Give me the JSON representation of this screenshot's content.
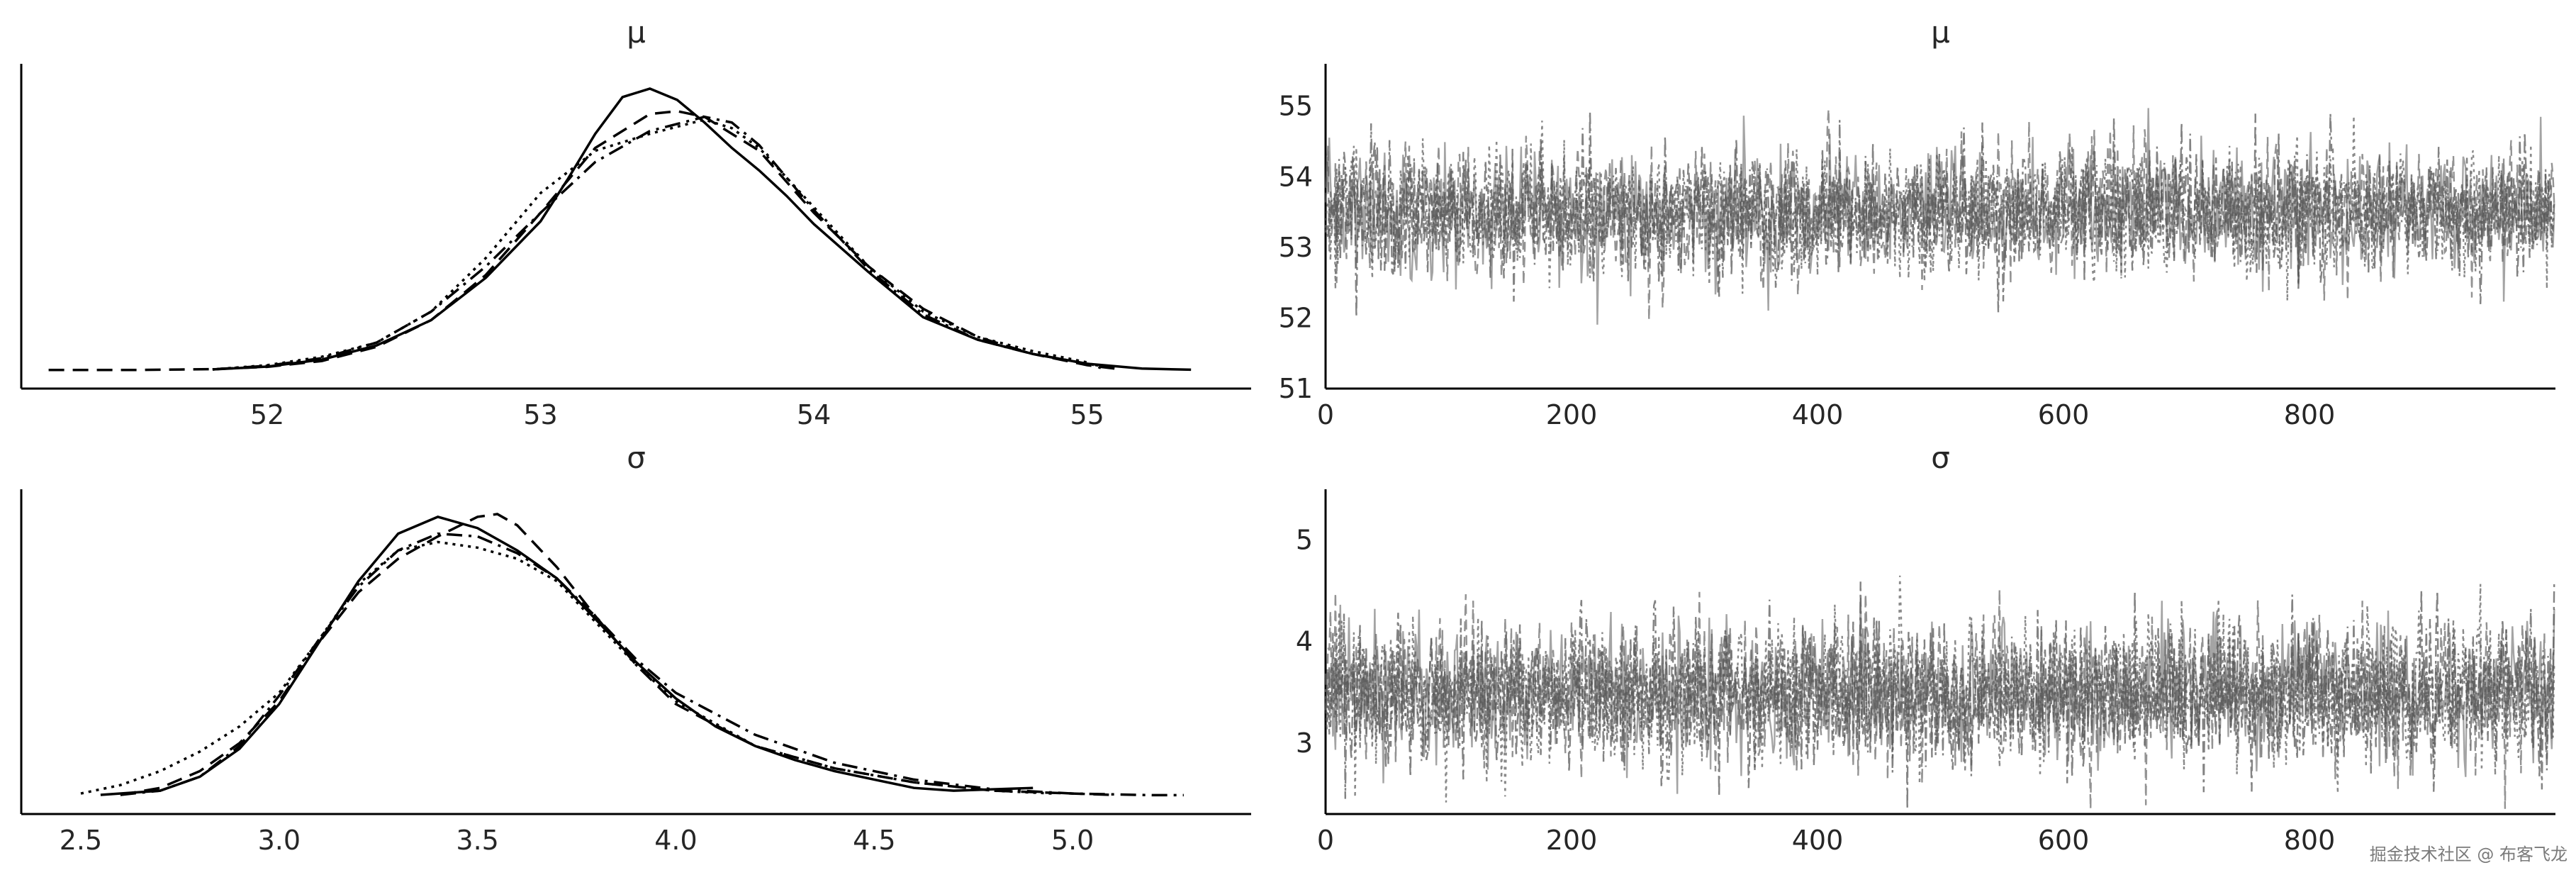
{
  "watermark": "掘金技术社区 @ 布客飞龙",
  "colors": {
    "kde_line": "#000000",
    "trace_line": "#595959",
    "text": "#262626"
  },
  "chart_data": [
    {
      "id": "mu-posterior",
      "type": "line",
      "title": "μ",
      "xlabel": "",
      "ylabel": "",
      "xlim": [
        51.1,
        55.6
      ],
      "xticks": [
        "52",
        "53",
        "54",
        "55"
      ],
      "show_y_axis_ticks": false,
      "grid": false,
      "series": [
        {
          "style": "solid",
          "x": [
            51.8,
            52.0,
            52.2,
            52.4,
            52.6,
            52.8,
            53.0,
            53.1,
            53.2,
            53.3,
            53.4,
            53.5,
            53.6,
            53.7,
            53.8,
            53.9,
            54.0,
            54.2,
            54.4,
            54.6,
            54.8,
            55.0,
            55.2,
            55.38
          ],
          "y": [
            0.005,
            0.015,
            0.04,
            0.09,
            0.18,
            0.33,
            0.53,
            0.68,
            0.84,
            0.97,
            1.0,
            0.96,
            0.88,
            0.79,
            0.71,
            0.62,
            0.52,
            0.35,
            0.19,
            0.11,
            0.06,
            0.025,
            0.008,
            0.004
          ]
        },
        {
          "style": "dashed",
          "x": [
            51.2,
            51.5,
            51.8,
            52.0,
            52.2,
            52.4,
            52.6,
            52.8,
            53.0,
            53.2,
            53.4,
            53.5,
            53.6,
            53.8,
            54.0,
            54.2,
            54.4,
            54.6,
            54.8,
            55.0,
            55.1
          ],
          "y": [
            0.003,
            0.003,
            0.006,
            0.014,
            0.035,
            0.085,
            0.18,
            0.34,
            0.56,
            0.79,
            0.91,
            0.92,
            0.9,
            0.78,
            0.56,
            0.37,
            0.22,
            0.12,
            0.06,
            0.02,
            0.008
          ]
        },
        {
          "style": "dotted",
          "x": [
            51.8,
            52.0,
            52.2,
            52.4,
            52.6,
            52.8,
            53.0,
            53.2,
            53.4,
            53.6,
            53.7,
            53.8,
            54.0,
            54.2,
            54.4,
            54.6,
            54.8,
            55.0,
            55.05
          ],
          "y": [
            0.005,
            0.02,
            0.05,
            0.1,
            0.21,
            0.4,
            0.63,
            0.78,
            0.84,
            0.89,
            0.86,
            0.79,
            0.58,
            0.37,
            0.21,
            0.12,
            0.07,
            0.03,
            0.01
          ]
        },
        {
          "style": "dashdot",
          "x": [
            51.8,
            52.0,
            52.2,
            52.4,
            52.6,
            52.8,
            53.0,
            53.2,
            53.4,
            53.6,
            53.7,
            53.8,
            54.0,
            54.2,
            54.4,
            54.6,
            54.8,
            55.0,
            55.1
          ],
          "y": [
            0.005,
            0.018,
            0.045,
            0.1,
            0.21,
            0.37,
            0.56,
            0.74,
            0.85,
            0.9,
            0.88,
            0.8,
            0.57,
            0.36,
            0.2,
            0.11,
            0.06,
            0.025,
            0.01
          ]
        }
      ]
    },
    {
      "id": "mu-trace",
      "type": "line",
      "title": "μ",
      "xlabel": "",
      "ylabel": "",
      "xlim": [
        0,
        1000
      ],
      "ylim": [
        51.0,
        55.6
      ],
      "xticks": [
        "0",
        "200",
        "400",
        "600",
        "800"
      ],
      "yticks": [
        "51",
        "52",
        "53",
        "54",
        "55"
      ],
      "draws": 1000,
      "chains": 4,
      "center": 53.5,
      "spread": 0.45,
      "grid": false
    },
    {
      "id": "sigma-posterior",
      "type": "line",
      "title": "σ",
      "xlabel": "",
      "ylabel": "",
      "xlim": [
        2.35,
        5.45
      ],
      "xticks": [
        "2.5",
        "3.0",
        "3.5",
        "4.0",
        "4.5",
        "5.0"
      ],
      "show_y_axis_ticks": false,
      "grid": false,
      "series": [
        {
          "style": "solid",
          "x": [
            2.55,
            2.7,
            2.8,
            2.9,
            3.0,
            3.1,
            3.2,
            3.3,
            3.4,
            3.5,
            3.6,
            3.7,
            3.8,
            3.9,
            4.0,
            4.1,
            4.2,
            4.3,
            4.4,
            4.5,
            4.6,
            4.7,
            4.8,
            4.9
          ],
          "y": [
            0.005,
            0.02,
            0.07,
            0.17,
            0.33,
            0.55,
            0.77,
            0.94,
            1.0,
            0.96,
            0.88,
            0.78,
            0.63,
            0.48,
            0.35,
            0.25,
            0.18,
            0.13,
            0.09,
            0.06,
            0.03,
            0.02,
            0.025,
            0.03
          ]
        },
        {
          "style": "dashed",
          "x": [
            2.6,
            2.7,
            2.8,
            2.9,
            3.0,
            3.1,
            3.2,
            3.3,
            3.4,
            3.5,
            3.55,
            3.6,
            3.7,
            3.8,
            3.9,
            4.0,
            4.2,
            4.4,
            4.6,
            4.8,
            5.0,
            5.1
          ],
          "y": [
            0.005,
            0.03,
            0.09,
            0.19,
            0.34,
            0.55,
            0.73,
            0.85,
            0.93,
            1.0,
            1.01,
            0.97,
            0.82,
            0.64,
            0.47,
            0.33,
            0.18,
            0.1,
            0.05,
            0.02,
            0.01,
            0.005
          ]
        },
        {
          "style": "dotted",
          "x": [
            2.5,
            2.6,
            2.7,
            2.8,
            2.9,
            3.0,
            3.1,
            3.2,
            3.3,
            3.4,
            3.5,
            3.6,
            3.7,
            3.8,
            3.9,
            4.0,
            4.2,
            4.4,
            4.6,
            4.8,
            4.95
          ],
          "y": [
            0.01,
            0.04,
            0.09,
            0.16,
            0.25,
            0.37,
            0.56,
            0.76,
            0.88,
            0.91,
            0.89,
            0.85,
            0.77,
            0.62,
            0.47,
            0.34,
            0.18,
            0.1,
            0.05,
            0.02,
            0.01
          ]
        },
        {
          "style": "dashdot",
          "x": [
            2.6,
            2.7,
            2.8,
            2.9,
            3.0,
            3.1,
            3.2,
            3.3,
            3.4,
            3.5,
            3.6,
            3.7,
            3.8,
            3.9,
            4.0,
            4.2,
            4.4,
            4.6,
            4.8,
            5.0,
            5.2,
            5.28
          ],
          "y": [
            0.005,
            0.02,
            0.07,
            0.18,
            0.36,
            0.56,
            0.75,
            0.88,
            0.94,
            0.93,
            0.87,
            0.78,
            0.64,
            0.49,
            0.37,
            0.22,
            0.12,
            0.06,
            0.025,
            0.01,
            0.004,
            0.004
          ]
        }
      ]
    },
    {
      "id": "sigma-trace",
      "type": "line",
      "title": "σ",
      "xlabel": "",
      "ylabel": "",
      "xlim": [
        0,
        1000
      ],
      "ylim": [
        2.3,
        5.5
      ],
      "xticks": [
        "0",
        "200",
        "400",
        "600",
        "800"
      ],
      "yticks": [
        "3",
        "4",
        "5"
      ],
      "draws": 1000,
      "chains": 4,
      "center": 3.5,
      "spread": 0.35,
      "grid": false
    }
  ]
}
